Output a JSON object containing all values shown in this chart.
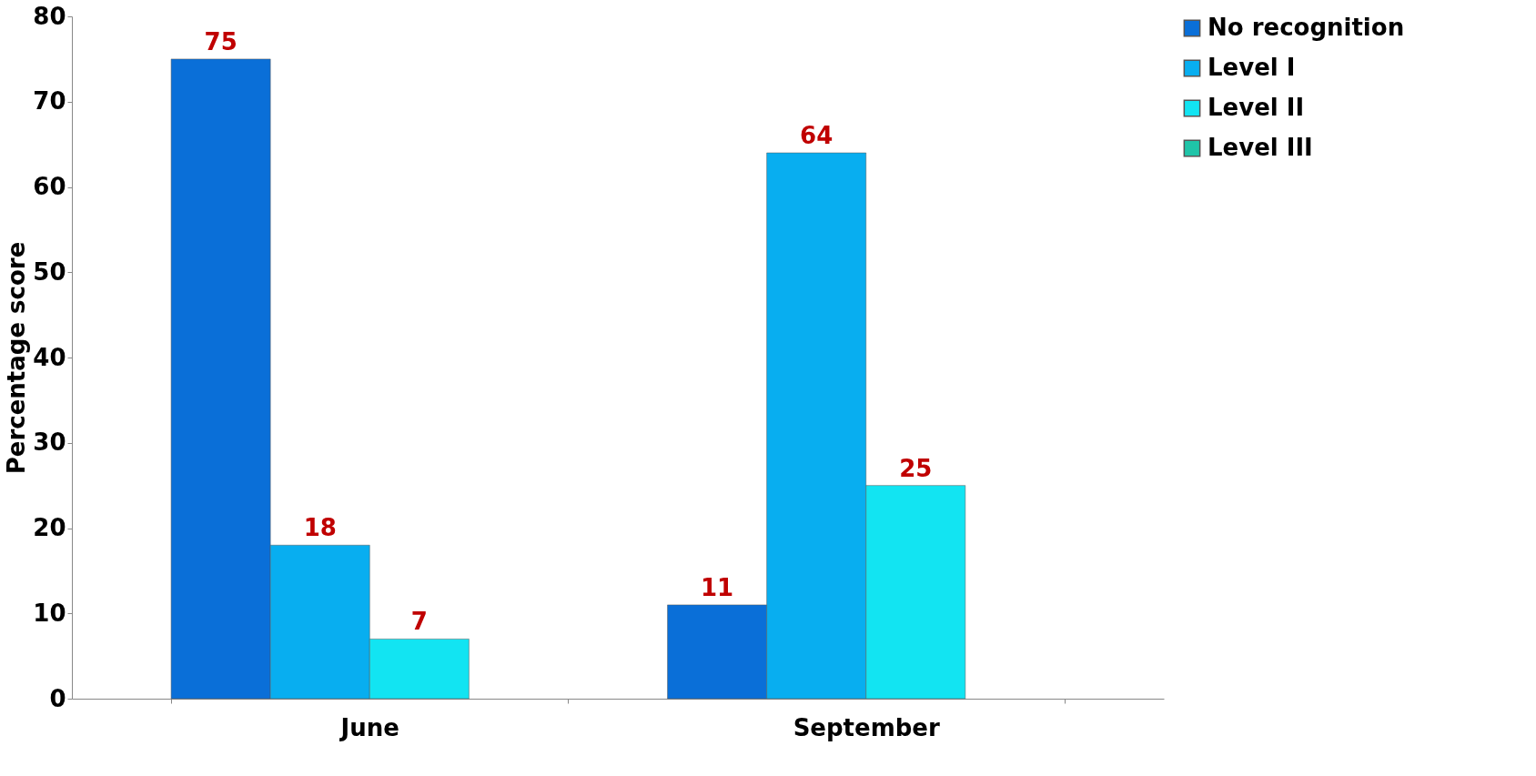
{
  "chart_data": {
    "type": "bar",
    "ylabel": "Percentage score",
    "categories": [
      "June",
      "September"
    ],
    "series": [
      {
        "name": "No recognition",
        "color": "#0a6fd8",
        "values": [
          75,
          11
        ]
      },
      {
        "name": "Level I",
        "color": "#08aef0",
        "values": [
          18,
          64
        ]
      },
      {
        "name": "Level II",
        "color": "#12e4f2",
        "values": [
          7,
          25
        ]
      },
      {
        "name": "Level III",
        "color": "#1fc4a8",
        "values": [
          null,
          null
        ]
      }
    ],
    "ylim": [
      0,
      80
    ],
    "yticks": [
      0,
      10,
      20,
      30,
      40,
      50,
      60,
      70,
      80
    ],
    "data_labels": true,
    "legend": "right",
    "grid": false
  }
}
